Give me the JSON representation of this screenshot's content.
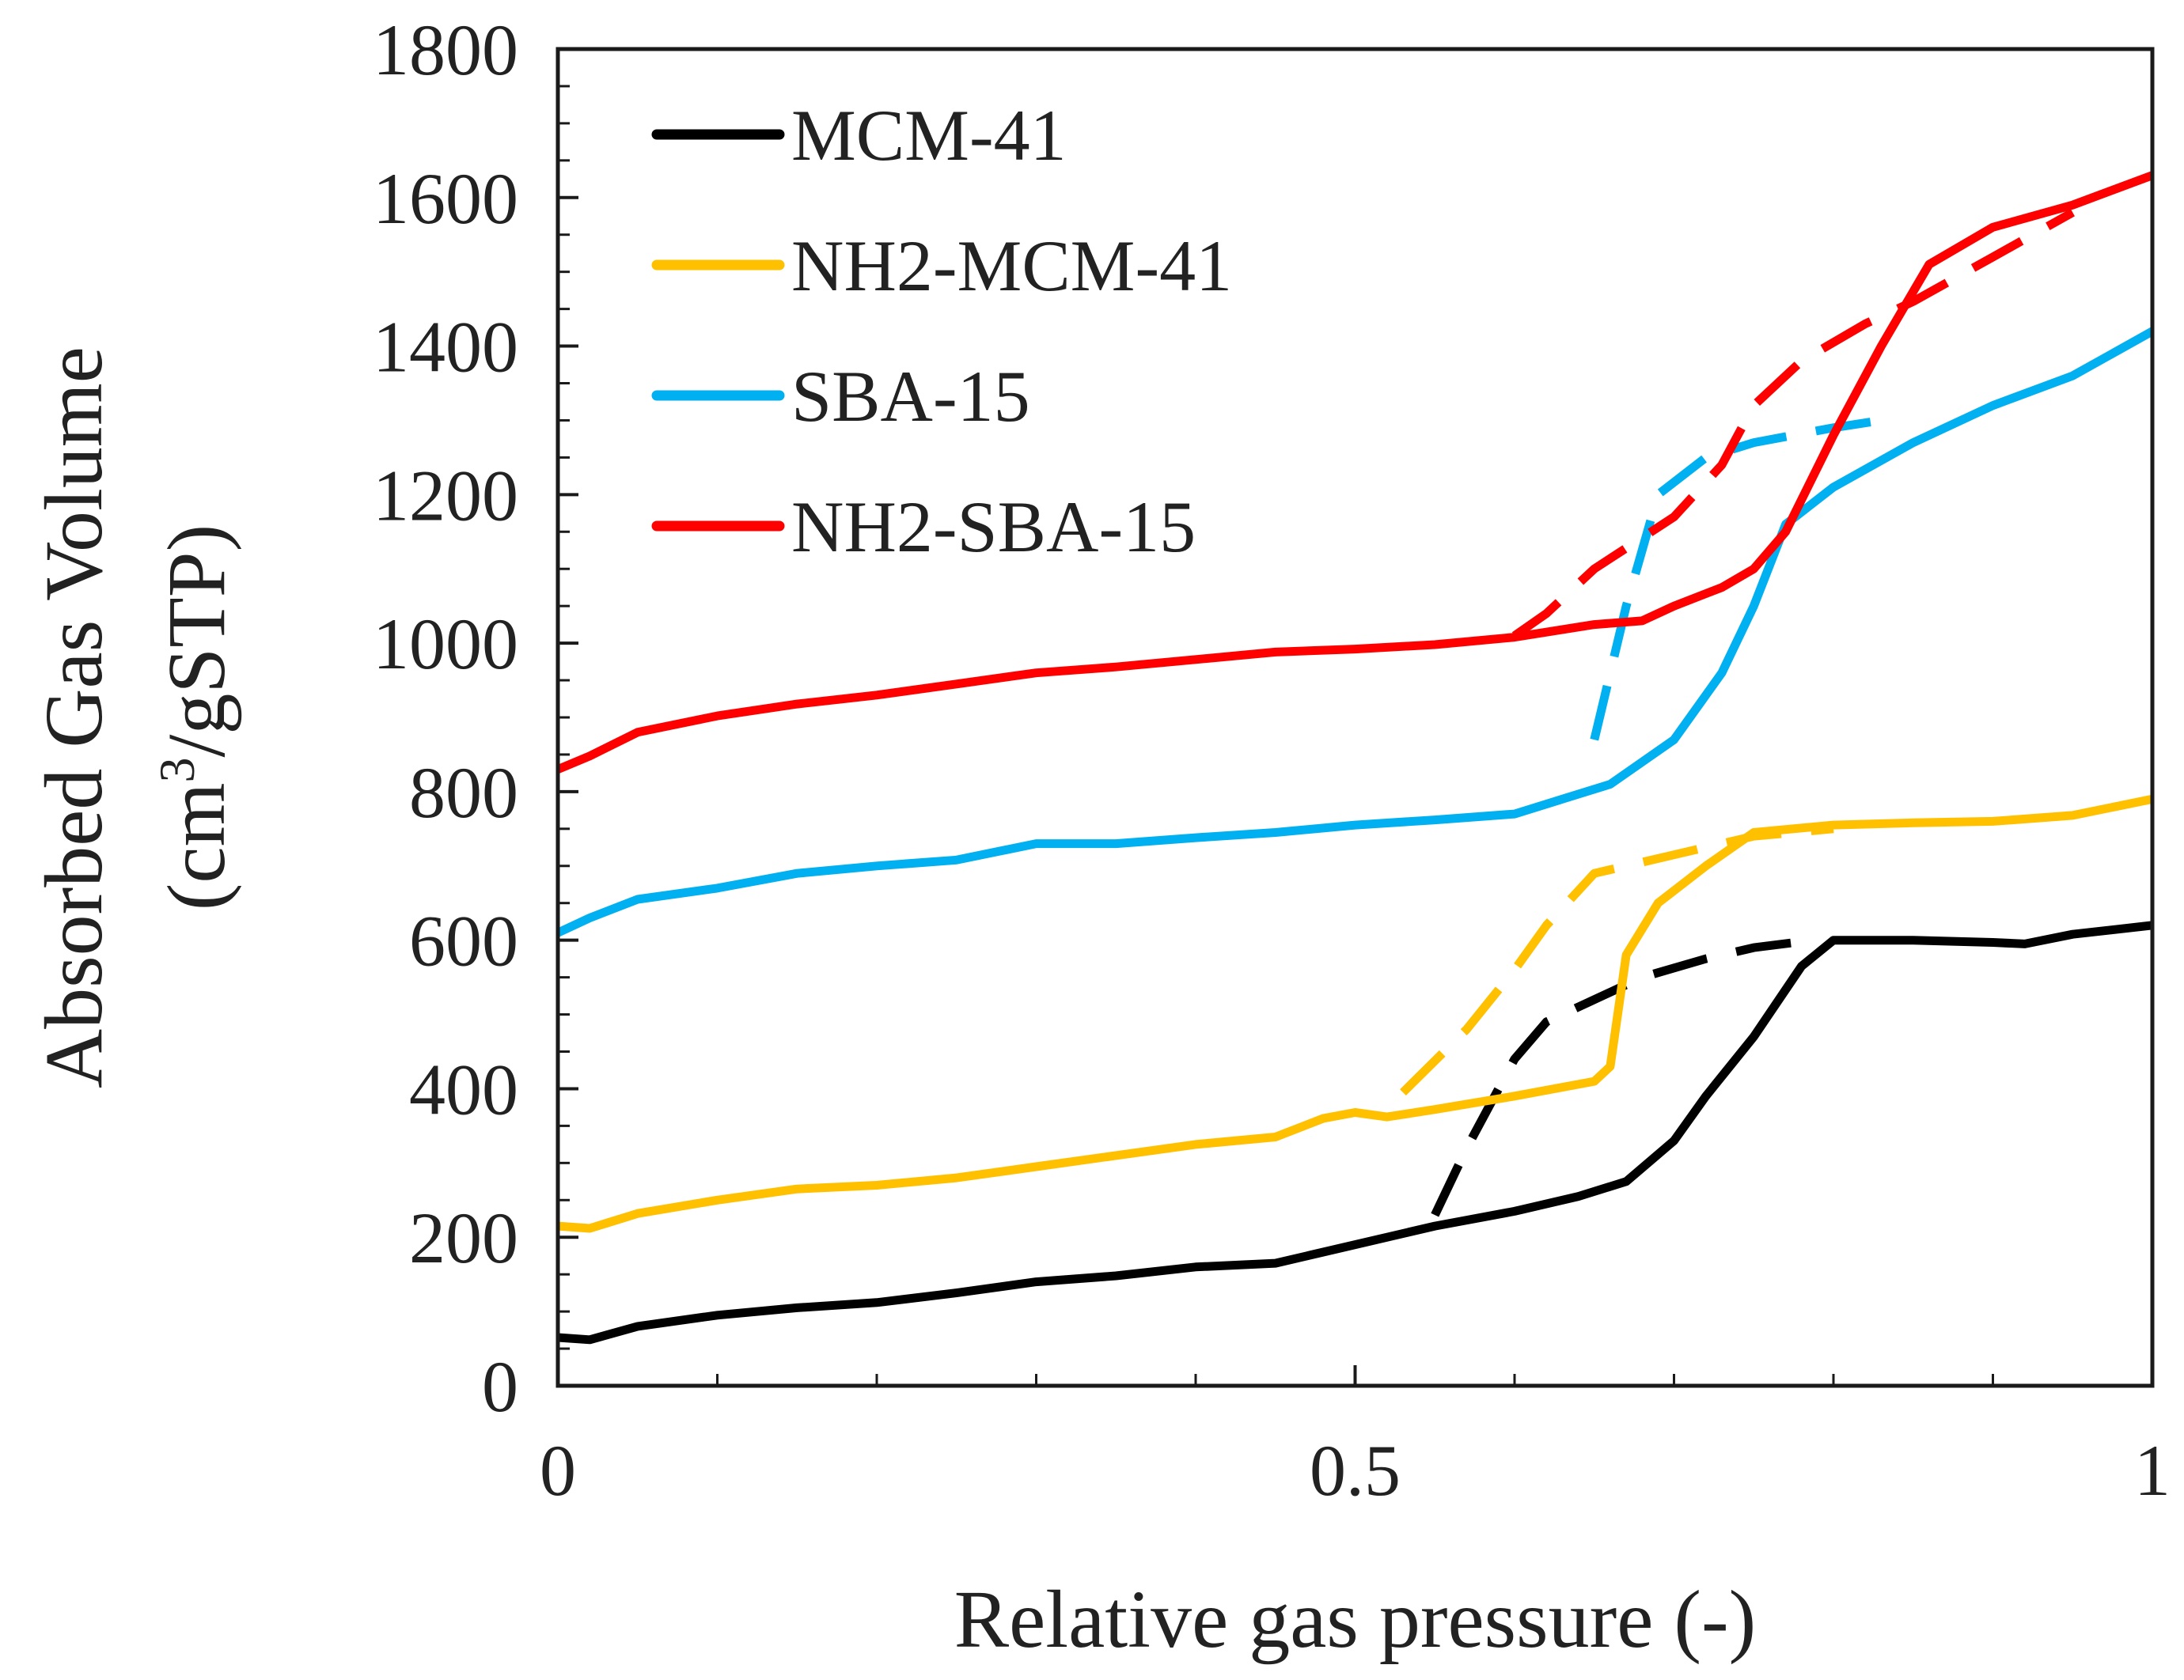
{
  "chart_data": {
    "type": "line",
    "xlabel": "Relative gas pressure (-)",
    "ylabel_line1": "Absorbed Gas Volume",
    "ylabel_line2_pre": "(cm",
    "ylabel_line2_sup": "3",
    "ylabel_line2_post": "/gSTP)",
    "xlim": [
      0,
      1
    ],
    "ylim": [
      0,
      1800
    ],
    "x_ticks": [
      0,
      0.5,
      1
    ],
    "x_tick_labels": [
      "0",
      "0.5",
      "1"
    ],
    "x_minor_step": 0.1,
    "y_ticks": [
      0,
      200,
      400,
      600,
      800,
      1000,
      1200,
      1400,
      1600,
      1800
    ],
    "y_tick_labels": [
      "0",
      "200",
      "400",
      "600",
      "800",
      "1000",
      "1200",
      "1400",
      "1600",
      "1800"
    ],
    "y_minor_step": 50,
    "grid": false,
    "legend_position": "top-left",
    "series": [
      {
        "name": "MCM-41",
        "color": "#000000",
        "adsorption": [
          [
            0,
            65
          ],
          [
            0.02,
            62
          ],
          [
            0.05,
            80
          ],
          [
            0.1,
            95
          ],
          [
            0.15,
            105
          ],
          [
            0.2,
            112
          ],
          [
            0.25,
            125
          ],
          [
            0.3,
            140
          ],
          [
            0.35,
            148
          ],
          [
            0.4,
            160
          ],
          [
            0.45,
            165
          ],
          [
            0.5,
            190
          ],
          [
            0.55,
            215
          ],
          [
            0.6,
            235
          ],
          [
            0.64,
            255
          ],
          [
            0.67,
            275
          ],
          [
            0.7,
            330
          ],
          [
            0.72,
            390
          ],
          [
            0.75,
            470
          ],
          [
            0.78,
            565
          ],
          [
            0.8,
            600
          ],
          [
            0.85,
            600
          ],
          [
            0.9,
            597
          ],
          [
            0.92,
            595
          ],
          [
            0.95,
            608
          ],
          [
            1.0,
            620
          ]
        ],
        "desorption": [
          [
            0.55,
            230
          ],
          [
            0.57,
            320
          ],
          [
            0.6,
            440
          ],
          [
            0.62,
            490
          ],
          [
            0.65,
            520
          ],
          [
            0.68,
            550
          ],
          [
            0.72,
            575
          ],
          [
            0.75,
            590
          ],
          [
            0.78,
            598
          ]
        ]
      },
      {
        "name": "NH2-MCM-41",
        "color": "#FFC000",
        "adsorption": [
          [
            0,
            215
          ],
          [
            0.02,
            212
          ],
          [
            0.05,
            232
          ],
          [
            0.1,
            250
          ],
          [
            0.15,
            265
          ],
          [
            0.2,
            270
          ],
          [
            0.25,
            280
          ],
          [
            0.3,
            295
          ],
          [
            0.35,
            310
          ],
          [
            0.4,
            325
          ],
          [
            0.45,
            335
          ],
          [
            0.48,
            360
          ],
          [
            0.5,
            368
          ],
          [
            0.52,
            362
          ],
          [
            0.55,
            372
          ],
          [
            0.6,
            390
          ],
          [
            0.65,
            410
          ],
          [
            0.66,
            430
          ],
          [
            0.67,
            580
          ],
          [
            0.69,
            650
          ],
          [
            0.72,
            700
          ],
          [
            0.75,
            745
          ],
          [
            0.8,
            755
          ],
          [
            0.85,
            758
          ],
          [
            0.9,
            760
          ],
          [
            0.95,
            768
          ],
          [
            1.0,
            790
          ]
        ],
        "desorption": [
          [
            0.53,
            395
          ],
          [
            0.57,
            480
          ],
          [
            0.6,
            560
          ],
          [
            0.62,
            620
          ],
          [
            0.65,
            690
          ],
          [
            0.7,
            715
          ],
          [
            0.75,
            740
          ],
          [
            0.8,
            750
          ]
        ]
      },
      {
        "name": "SBA-15",
        "color": "#00B0F0",
        "adsorption": [
          [
            0,
            610
          ],
          [
            0.02,
            630
          ],
          [
            0.05,
            655
          ],
          [
            0.1,
            670
          ],
          [
            0.15,
            690
          ],
          [
            0.2,
            700
          ],
          [
            0.25,
            708
          ],
          [
            0.3,
            730
          ],
          [
            0.35,
            730
          ],
          [
            0.4,
            738
          ],
          [
            0.45,
            745
          ],
          [
            0.5,
            755
          ],
          [
            0.55,
            762
          ],
          [
            0.6,
            770
          ],
          [
            0.63,
            790
          ],
          [
            0.66,
            810
          ],
          [
            0.7,
            870
          ],
          [
            0.73,
            960
          ],
          [
            0.75,
            1050
          ],
          [
            0.77,
            1160
          ],
          [
            0.8,
            1210
          ],
          [
            0.85,
            1270
          ],
          [
            0.9,
            1320
          ],
          [
            0.95,
            1360
          ],
          [
            1.0,
            1420
          ]
        ],
        "desorption": [
          [
            0.65,
            870
          ],
          [
            0.67,
            1050
          ],
          [
            0.69,
            1200
          ],
          [
            0.72,
            1250
          ],
          [
            0.75,
            1270
          ],
          [
            0.8,
            1290
          ],
          [
            0.83,
            1300
          ]
        ]
      },
      {
        "name": "NH2-SBA-15",
        "color": "#FF0000",
        "adsorption": [
          [
            0,
            830
          ],
          [
            0.02,
            848
          ],
          [
            0.05,
            880
          ],
          [
            0.1,
            902
          ],
          [
            0.15,
            918
          ],
          [
            0.2,
            930
          ],
          [
            0.25,
            945
          ],
          [
            0.3,
            960
          ],
          [
            0.35,
            968
          ],
          [
            0.4,
            978
          ],
          [
            0.45,
            988
          ],
          [
            0.5,
            992
          ],
          [
            0.55,
            998
          ],
          [
            0.6,
            1008
          ],
          [
            0.65,
            1025
          ],
          [
            0.68,
            1030
          ],
          [
            0.7,
            1050
          ],
          [
            0.73,
            1075
          ],
          [
            0.75,
            1100
          ],
          [
            0.77,
            1150
          ],
          [
            0.8,
            1280
          ],
          [
            0.83,
            1400
          ],
          [
            0.86,
            1510
          ],
          [
            0.9,
            1560
          ],
          [
            0.95,
            1590
          ],
          [
            1.0,
            1630
          ]
        ],
        "desorption": [
          [
            0.6,
            1010
          ],
          [
            0.62,
            1040
          ],
          [
            0.65,
            1100
          ],
          [
            0.7,
            1170
          ],
          [
            0.73,
            1240
          ],
          [
            0.75,
            1320
          ],
          [
            0.78,
            1380
          ],
          [
            0.82,
            1430
          ],
          [
            0.85,
            1460
          ],
          [
            0.9,
            1520
          ],
          [
            0.95,
            1580
          ]
        ]
      }
    ]
  }
}
